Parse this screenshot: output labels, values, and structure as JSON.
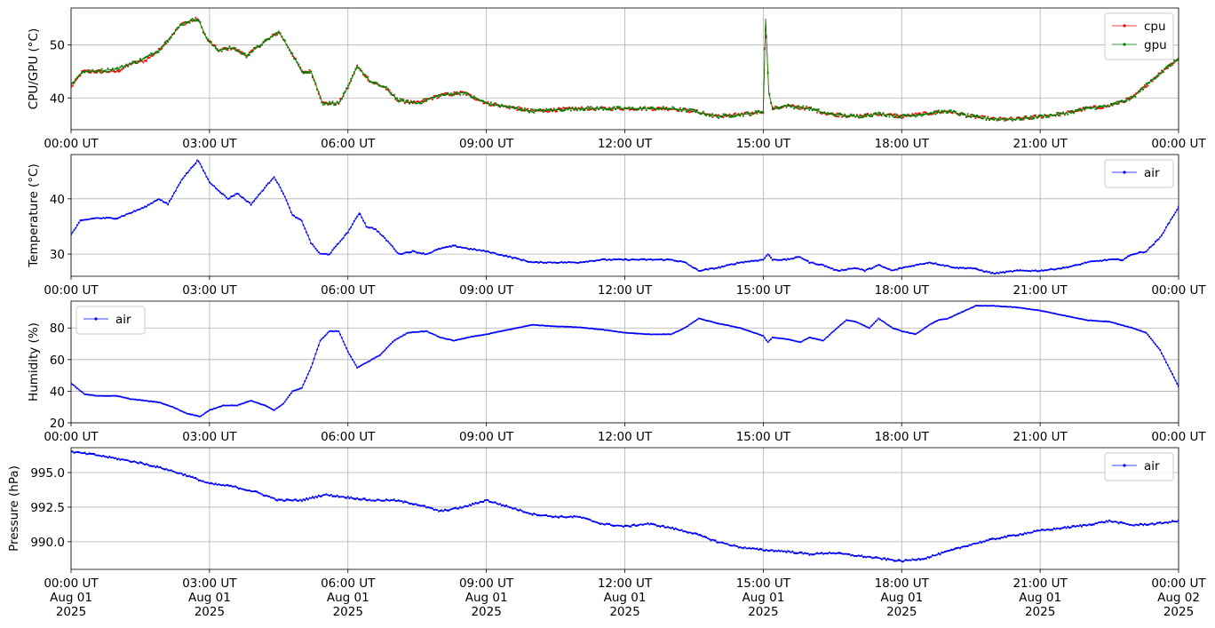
{
  "chart_data": [
    {
      "type": "line",
      "ylabel": "CPU/GPU (°C)",
      "xlim": [
        "2025-08-01 00:00 UT",
        "2025-08-02 00:00 UT"
      ],
      "ylim": [
        34,
        57
      ],
      "yticks": [
        40,
        50
      ],
      "xtick_labels": [
        "00:00 UT",
        "03:00 UT",
        "06:00 UT",
        "09:00 UT",
        "12:00 UT",
        "15:00 UT",
        "18:00 UT",
        "21:00 UT",
        "00:00 UT"
      ],
      "grid": true,
      "legend_position": "top-right",
      "series": [
        {
          "name": "cpu",
          "color": "#ff0000",
          "x_hours": [
            0,
            0.25,
            0.5,
            1.0,
            1.3,
            1.6,
            1.9,
            2.1,
            2.4,
            2.75,
            2.95,
            3.2,
            3.5,
            3.8,
            4.1,
            4.5,
            4.75,
            5.0,
            5.2,
            5.45,
            5.8,
            6.0,
            6.2,
            6.5,
            6.8,
            7.1,
            7.5,
            8.0,
            8.5,
            9.0,
            10.0,
            11.0,
            12.0,
            13.0,
            13.5,
            14.0,
            14.7,
            15.0,
            15.05,
            15.12,
            15.2,
            15.5,
            16.0,
            16.4,
            17.0,
            17.5,
            18.0,
            18.5,
            19.0,
            19.5,
            20.0,
            20.5,
            21.0,
            21.5,
            22.0,
            22.5,
            23.0,
            23.5,
            24.0
          ],
          "values": [
            42,
            45,
            45,
            45,
            46.5,
            47,
            49,
            51,
            54,
            55,
            51,
            49,
            49.5,
            48,
            50,
            52.5,
            49,
            45,
            45,
            39,
            39,
            42,
            46,
            43,
            42,
            39.5,
            39,
            40.5,
            41,
            39,
            37.5,
            38,
            38,
            38,
            37.5,
            36.5,
            37,
            37.5,
            55,
            41,
            38,
            38.5,
            38,
            37,
            36.5,
            37,
            36.5,
            37,
            37.5,
            36.5,
            36,
            36,
            36.5,
            37,
            38,
            38.5,
            40,
            44,
            47.5
          ]
        },
        {
          "name": "gpu",
          "color": "#008000",
          "x_hours": [
            0,
            0.25,
            0.5,
            1.0,
            1.3,
            1.6,
            1.9,
            2.1,
            2.4,
            2.75,
            2.95,
            3.2,
            3.5,
            3.8,
            4.1,
            4.5,
            4.75,
            5.0,
            5.2,
            5.45,
            5.8,
            6.0,
            6.2,
            6.5,
            6.8,
            7.1,
            7.5,
            8.0,
            8.5,
            9.0,
            10.0,
            11.0,
            12.0,
            13.0,
            13.5,
            14.0,
            14.7,
            15.0,
            15.05,
            15.12,
            15.2,
            15.5,
            16.0,
            16.4,
            17.0,
            17.5,
            18.0,
            18.5,
            19.0,
            19.5,
            20.0,
            20.5,
            21.0,
            21.5,
            22.0,
            22.5,
            23.0,
            23.5,
            24.0
          ],
          "values": [
            42.5,
            45,
            45,
            45.5,
            46.5,
            47.5,
            49,
            51,
            54,
            55,
            51,
            49,
            49.5,
            48,
            50,
            52.5,
            49,
            45,
            45,
            39,
            39,
            42,
            46,
            43,
            42,
            39.5,
            39,
            40.5,
            41,
            39,
            37.5,
            38,
            38,
            38,
            37.5,
            36.5,
            37,
            37.5,
            55,
            41,
            38,
            38.5,
            38,
            37,
            36.5,
            37,
            36.5,
            37,
            37.5,
            36.5,
            36,
            36,
            36.5,
            37,
            38,
            38.5,
            40,
            44,
            47.5
          ]
        }
      ]
    },
    {
      "type": "line",
      "ylabel": "Temperature (°C)",
      "xlim": [
        "2025-08-01 00:00 UT",
        "2025-08-02 00:00 UT"
      ],
      "ylim": [
        26,
        48
      ],
      "yticks": [
        30,
        40
      ],
      "xtick_labels": [
        "00:00 UT",
        "03:00 UT",
        "06:00 UT",
        "09:00 UT",
        "12:00 UT",
        "15:00 UT",
        "18:00 UT",
        "21:00 UT",
        "00:00 UT"
      ],
      "grid": true,
      "legend_position": "top-right",
      "series": [
        {
          "name": "air",
          "color": "#0000ff",
          "x_hours": [
            0,
            0.2,
            0.5,
            0.8,
            1.0,
            1.3,
            1.6,
            1.9,
            2.1,
            2.4,
            2.75,
            3.0,
            3.4,
            3.6,
            3.9,
            4.1,
            4.4,
            4.6,
            4.8,
            5.0,
            5.2,
            5.4,
            5.6,
            5.8,
            6.0,
            6.25,
            6.4,
            6.6,
            6.9,
            7.1,
            7.4,
            7.7,
            8.0,
            8.3,
            8.6,
            9.0,
            9.5,
            10.0,
            10.5,
            11.0,
            11.5,
            12.0,
            12.5,
            13.0,
            13.3,
            13.6,
            14.0,
            14.5,
            15.0,
            15.1,
            15.2,
            15.5,
            15.8,
            16.0,
            16.3,
            16.6,
            17.0,
            17.2,
            17.5,
            17.8,
            18.0,
            18.3,
            18.6,
            18.9,
            19.2,
            19.5,
            20.0,
            20.5,
            21.0,
            21.5,
            21.8,
            22.0,
            22.5,
            22.8,
            23.0,
            23.3,
            23.6,
            24.0
          ],
          "values": [
            33.5,
            36,
            36.5,
            36.5,
            36.5,
            37.5,
            38.5,
            40,
            39,
            43.5,
            47,
            43,
            40,
            41,
            39,
            41,
            44,
            41,
            37,
            36,
            32,
            30,
            30,
            32,
            34,
            37.5,
            35,
            34.5,
            32,
            30,
            30.5,
            30,
            31,
            31.5,
            31,
            30.5,
            29.5,
            28.5,
            28.5,
            28.5,
            29,
            29,
            29,
            29,
            28.5,
            27,
            27.5,
            28.5,
            29,
            30,
            29,
            29,
            29.5,
            28.5,
            28,
            27,
            27.5,
            27,
            28,
            27,
            27.5,
            28,
            28.5,
            28,
            27.5,
            27.5,
            26.5,
            27,
            27,
            27.5,
            28,
            28.5,
            29,
            29,
            30,
            30.5,
            33,
            38.5
          ]
        }
      ]
    },
    {
      "type": "line",
      "ylabel": "Humidity (%)",
      "xlim": [
        "2025-08-01 00:00 UT",
        "2025-08-02 00:00 UT"
      ],
      "ylim": [
        20,
        97
      ],
      "yticks": [
        20,
        40,
        60,
        80
      ],
      "xtick_labels": [
        "00:00 UT",
        "03:00 UT",
        "06:00 UT",
        "09:00 UT",
        "12:00 UT",
        "15:00 UT",
        "18:00 UT",
        "21:00 UT",
        "00:00 UT"
      ],
      "grid": true,
      "legend_position": "top-left",
      "series": [
        {
          "name": "air",
          "color": "#0000ff",
          "x_hours": [
            0,
            0.3,
            0.6,
            1.0,
            1.3,
            1.6,
            1.9,
            2.2,
            2.5,
            2.8,
            3.0,
            3.3,
            3.6,
            3.9,
            4.2,
            4.4,
            4.6,
            4.8,
            5.0,
            5.2,
            5.4,
            5.6,
            5.8,
            6.0,
            6.2,
            6.4,
            6.7,
            7.0,
            7.3,
            7.7,
            8.0,
            8.3,
            8.6,
            9.0,
            9.5,
            10.0,
            10.5,
            11.0,
            11.5,
            12.0,
            12.5,
            13.0,
            13.3,
            13.6,
            14.0,
            14.5,
            15.0,
            15.1,
            15.2,
            15.5,
            15.8,
            16.0,
            16.3,
            16.6,
            16.8,
            17.0,
            17.3,
            17.5,
            17.8,
            18.0,
            18.3,
            18.6,
            18.8,
            19.0,
            19.3,
            19.6,
            20.0,
            20.5,
            21.0,
            21.5,
            22.0,
            22.5,
            23.0,
            23.3,
            23.6,
            24.0
          ],
          "values": [
            45,
            38,
            37,
            37,
            35,
            34,
            33,
            30,
            26,
            24,
            28,
            31,
            31,
            34,
            31,
            28,
            32,
            40,
            42,
            55,
            72,
            78,
            78,
            65,
            55,
            58,
            63,
            72,
            77,
            78,
            74,
            72,
            74,
            76,
            79,
            82,
            81,
            80.5,
            79,
            77,
            76,
            76,
            80,
            86,
            83,
            80,
            75,
            71,
            74,
            73,
            71,
            74,
            72,
            80,
            85,
            84,
            80,
            86,
            80,
            78,
            76,
            82,
            85,
            86,
            90,
            94,
            94,
            93,
            91,
            88,
            85,
            84,
            80,
            77,
            66,
            43
          ]
        }
      ]
    },
    {
      "type": "line",
      "ylabel": "Pressure (hPa)",
      "xlim": [
        "2025-08-01 00:00 UT",
        "2025-08-02 00:00 UT"
      ],
      "ylim": [
        988.0,
        996.8
      ],
      "yticks": [
        990.0,
        992.5,
        995.0
      ],
      "ytick_labels": [
        "990.0",
        "992.5",
        "995.0"
      ],
      "xtick_labels": [
        [
          "00:00 UT",
          "Aug 01",
          "2025"
        ],
        [
          "03:00 UT",
          "Aug 01",
          "2025"
        ],
        [
          "06:00 UT",
          "Aug 01",
          "2025"
        ],
        [
          "09:00 UT",
          "Aug 01",
          "2025"
        ],
        [
          "12:00 UT",
          "Aug 01",
          "2025"
        ],
        [
          "15:00 UT",
          "Aug 01",
          "2025"
        ],
        [
          "18:00 UT",
          "Aug 01",
          "2025"
        ],
        [
          "21:00 UT",
          "Aug 01",
          "2025"
        ],
        [
          "00:00 UT",
          "Aug 02",
          "2025"
        ]
      ],
      "grid": true,
      "legend_position": "top-right",
      "series": [
        {
          "name": "air",
          "color": "#0000ff",
          "x_hours": [
            0,
            0.5,
            1.0,
            1.5,
            2.0,
            2.5,
            3.0,
            3.5,
            4.0,
            4.5,
            5.0,
            5.5,
            6.0,
            6.5,
            7.0,
            7.5,
            8.0,
            8.5,
            9.0,
            9.5,
            10.0,
            10.5,
            11.0,
            11.5,
            12.0,
            12.5,
            13.0,
            13.5,
            14.0,
            14.5,
            15.0,
            15.5,
            16.0,
            16.5,
            17.0,
            17.5,
            18.0,
            18.5,
            19.0,
            19.5,
            20.0,
            20.5,
            21.0,
            21.5,
            22.0,
            22.5,
            23.0,
            23.5,
            24.0
          ],
          "values": [
            996.5,
            996.3,
            996.0,
            995.7,
            995.3,
            994.8,
            994.2,
            994.0,
            993.6,
            993.0,
            993.0,
            993.4,
            993.2,
            993.0,
            993.0,
            992.7,
            992.2,
            992.5,
            993.0,
            992.5,
            992.0,
            991.8,
            991.8,
            991.3,
            991.1,
            991.3,
            991.0,
            990.6,
            990.0,
            989.6,
            989.4,
            989.3,
            989.1,
            989.2,
            989.0,
            988.8,
            988.6,
            988.8,
            989.3,
            989.8,
            990.2,
            990.5,
            990.8,
            991.0,
            991.2,
            991.5,
            991.2,
            991.3,
            991.5
          ]
        }
      ]
    }
  ]
}
